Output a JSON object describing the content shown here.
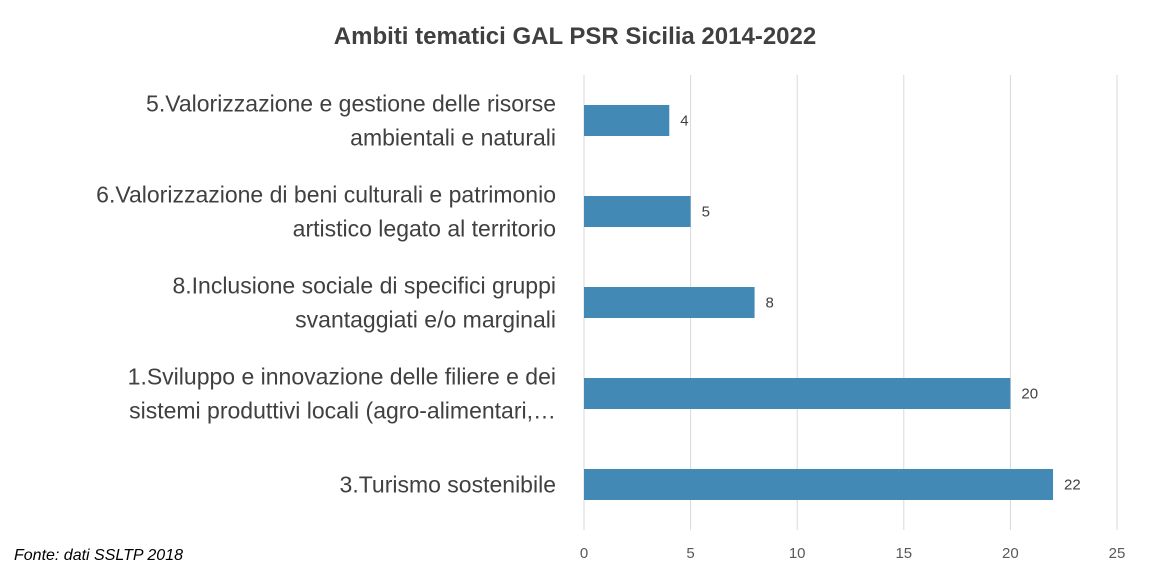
{
  "chart_data": {
    "type": "bar",
    "orientation": "horizontal",
    "title": "Ambiti tematici GAL PSR Sicilia 2014-2022",
    "categories": [
      [
        "5.Valorizzazione e gestione delle risorse",
        "ambientali e naturali"
      ],
      [
        "6.Valorizzazione di beni culturali e patrimonio",
        "artistico legato al territorio"
      ],
      [
        "8.Inclusione sociale di specifici gruppi",
        "svantaggiati e/o marginali"
      ],
      [
        "1.Sviluppo e innovazione delle filiere e dei",
        "sistemi produttivi locali (agro-alimentari,…"
      ],
      [
        "3.Turismo sostenibile"
      ]
    ],
    "values": [
      4,
      5,
      8,
      20,
      22
    ],
    "xlim": [
      0,
      25
    ],
    "xticks": [
      0,
      5,
      10,
      15,
      20,
      25
    ],
    "grid": "vertical",
    "bar_color": "#4289b5",
    "grid_color": "#d9d9d9"
  },
  "source_note": "Fonte: dati SSLTP 2018"
}
